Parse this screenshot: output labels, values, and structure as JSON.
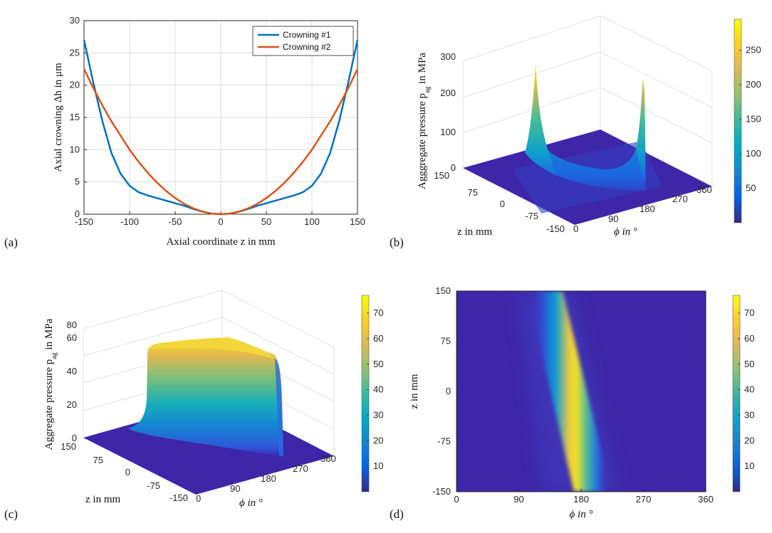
{
  "colors": {
    "series1": "#0072BD",
    "series2": "#D95319",
    "surface_base": "#3E26A8",
    "parula": [
      "#352A87",
      "#0363E1",
      "#1485D4",
      "#06A7C6",
      "#38B99E",
      "#92BF73",
      "#D9BA56",
      "#FCCE2E",
      "#F9FB0E"
    ]
  },
  "chart_data": [
    {
      "panel": "(a)",
      "type": "line",
      "xlabel": "Axial coordinate z in mm",
      "ylabel": "Axial crowning Δh in μm",
      "xlim": [
        -150,
        150
      ],
      "ylim": [
        0,
        30
      ],
      "xticks": [
        "-150",
        "-100",
        "-50",
        "0",
        "50",
        "100",
        "150"
      ],
      "yticks": [
        "0",
        "5",
        "10",
        "15",
        "20",
        "25",
        "30"
      ],
      "grid": true,
      "legend_position": "top-right",
      "x": [
        -150,
        -140,
        -130,
        -120,
        -110,
        -100,
        -90,
        -80,
        -70,
        -60,
        -50,
        -40,
        -30,
        -20,
        -10,
        0,
        10,
        20,
        30,
        40,
        50,
        60,
        70,
        80,
        90,
        100,
        110,
        120,
        130,
        140,
        150
      ],
      "series": [
        {
          "name": "Crowning #1",
          "values": [
            27,
            20.5,
            14.5,
            9.5,
            6.3,
            4.4,
            3.4,
            2.9,
            2.5,
            2.1,
            1.7,
            1.3,
            0.8,
            0.4,
            0.1,
            0,
            0.1,
            0.4,
            0.8,
            1.3,
            1.7,
            2.1,
            2.5,
            2.9,
            3.4,
            4.4,
            6.3,
            9.5,
            14.5,
            20.5,
            27
          ]
        },
        {
          "name": "Crowning #2",
          "values": [
            22.5,
            19.6,
            16.9,
            14.4,
            12.2,
            10.0,
            8.1,
            6.4,
            4.9,
            3.6,
            2.5,
            1.6,
            0.9,
            0.4,
            0.1,
            0,
            0.1,
            0.4,
            0.9,
            1.6,
            2.5,
            3.6,
            4.9,
            6.4,
            8.1,
            10.0,
            12.2,
            14.4,
            16.9,
            19.6,
            22.5
          ]
        }
      ]
    },
    {
      "panel": "(b)",
      "type": "surface",
      "zlabel": "Agggregate pressure p",
      "zlabel_sub": "ag",
      "zlabel_suffix": " in MPa",
      "xlabel": "ϕ in °",
      "ylabel": "z in mm",
      "phi_ticks": [
        "0",
        "90",
        "180",
        "270",
        "360"
      ],
      "z_ticks": [
        "150",
        "75",
        "0",
        "-75",
        "-150"
      ],
      "p_ticks": [
        "0",
        "100",
        "200",
        "300"
      ],
      "zlim": [
        0,
        300
      ],
      "peak_values": [
        285,
        240
      ],
      "valley_value": 35,
      "colorbar_ticks": [
        "50",
        "100",
        "150",
        "200",
        "250"
      ],
      "colorbar_range": [
        0,
        295
      ]
    },
    {
      "panel": "(c)",
      "type": "surface",
      "zlabel": "Aggregate pressure p",
      "zlabel_sub": "ag",
      "zlabel_suffix": " in MPa",
      "xlabel": "ϕ in °",
      "ylabel": "z in mm",
      "phi_ticks": [
        "0",
        "90",
        "180",
        "270",
        "360"
      ],
      "z_ticks": [
        "150",
        "75",
        "0",
        "-75",
        "-150"
      ],
      "p_ticks": [
        "0",
        "20",
        "40",
        "60",
        "80"
      ],
      "zlim": [
        0,
        80
      ],
      "plateau_value": 70,
      "colorbar_ticks": [
        "10",
        "20",
        "30",
        "40",
        "50",
        "60",
        "70"
      ],
      "colorbar_range": [
        0,
        77
      ]
    },
    {
      "panel": "(d)",
      "type": "heatmap",
      "xlabel": "ϕ in °",
      "ylabel": "z in mm",
      "xlim": [
        0,
        360
      ],
      "ylim": [
        -150,
        150
      ],
      "xticks": [
        "0",
        "90",
        "180",
        "270",
        "360"
      ],
      "yticks": [
        "150",
        "75",
        "0",
        "-75",
        "-150"
      ],
      "band_center_phi_at_top": 158,
      "band_center_phi_at_bottom": 228,
      "max_value": 77,
      "colorbar_ticks": [
        "10",
        "20",
        "30",
        "40",
        "50",
        "60",
        "70"
      ],
      "colorbar_range": [
        0,
        77
      ]
    }
  ]
}
